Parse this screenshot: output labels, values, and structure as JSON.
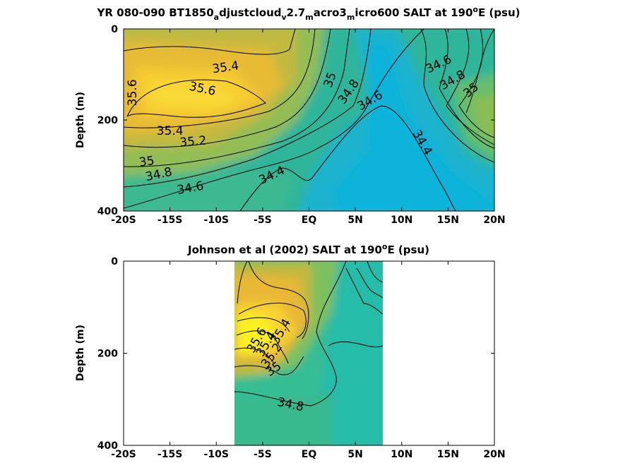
{
  "chart_data": [
    {
      "type": "heatmap",
      "title": "YR 080-090 BT1850_adjustcloud_v2.7_macro3_micro600 SALT at 190°E (psu)",
      "title_parts": [
        "YR 080-090 BT1850",
        "a",
        "djustcloud",
        "v",
        "2.7",
        "m",
        "acro3",
        "m",
        "icro600 SALT at 190",
        "o",
        "E (psu)"
      ],
      "ylabel": "Depth (m)",
      "xlabel": "",
      "xlim": [
        -20,
        20
      ],
      "ylim": [
        400,
        0
      ],
      "x_ticks": [
        -20,
        -15,
        -10,
        -5,
        0,
        5,
        10,
        15,
        20
      ],
      "x_tick_labels": [
        "-20S",
        "-15S",
        "-10S",
        "-5S",
        "EQ",
        "5N",
        "10N",
        "15N",
        "20N"
      ],
      "y_ticks": [
        0,
        200,
        400
      ],
      "y_tick_labels": [
        "0",
        "200",
        "400"
      ],
      "colormap": "parula",
      "clim": [
        34.3,
        35.8
      ],
      "contour_levels": [
        34.4,
        34.6,
        34.8,
        35,
        35.2,
        35.4,
        35.6
      ],
      "contour_labels": [
        {
          "text": "35.4",
          "lat": -9,
          "depth": 85,
          "angle": -8
        },
        {
          "text": "35.6",
          "lat": -11.5,
          "depth": 132,
          "angle": 12
        },
        {
          "text": "35.6",
          "lat": -19,
          "depth": 140,
          "angle": -90
        },
        {
          "text": "35.4",
          "lat": -15,
          "depth": 225,
          "angle": 0
        },
        {
          "text": "35.2",
          "lat": -12.5,
          "depth": 248,
          "angle": -5
        },
        {
          "text": "35",
          "lat": -17.5,
          "depth": 292,
          "angle": -8
        },
        {
          "text": "34.8",
          "lat": -16.2,
          "depth": 320,
          "angle": -12
        },
        {
          "text": "34.6",
          "lat": -12.8,
          "depth": 350,
          "angle": -10
        },
        {
          "text": "34.4",
          "lat": -4,
          "depth": 322,
          "angle": -25
        },
        {
          "text": "35",
          "lat": 2.3,
          "depth": 112,
          "angle": -70
        },
        {
          "text": "34.8",
          "lat": 4.3,
          "depth": 138,
          "angle": -55
        },
        {
          "text": "34.6",
          "lat": 6.6,
          "depth": 158,
          "angle": -30
        },
        {
          "text": "34.4",
          "lat": 12.2,
          "depth": 250,
          "angle": 60
        },
        {
          "text": "34.6",
          "lat": 14,
          "depth": 78,
          "angle": -25
        },
        {
          "text": "34.8",
          "lat": 15.5,
          "depth": 113,
          "angle": -30
        },
        {
          "text": "35",
          "lat": 17.5,
          "depth": 135,
          "angle": -40
        }
      ],
      "data_extent_lat": [
        -20,
        20
      ],
      "grid": false
    },
    {
      "type": "heatmap",
      "title": "Johnson et al (2002) SALT at 190°E (psu)",
      "title_parts": [
        "Johnson et al (2002) SALT at 190",
        "o",
        "E (psu)"
      ],
      "ylabel": "Depth (m)",
      "xlabel": "",
      "xlim": [
        -20,
        20
      ],
      "ylim": [
        400,
        0
      ],
      "x_ticks": [
        -20,
        -15,
        -10,
        -5,
        0,
        5,
        10,
        15,
        20
      ],
      "x_tick_labels": [
        "-20S",
        "-15S",
        "-10S",
        "-5S",
        "EQ",
        "5N",
        "10N",
        "15N",
        "20N"
      ],
      "y_ticks": [
        0,
        200,
        400
      ],
      "y_tick_labels": [
        "0",
        "200",
        "400"
      ],
      "colormap": "parula",
      "clim": [
        34.3,
        35.8
      ],
      "contour_levels": [
        34.8,
        35,
        35.2,
        35.4,
        35.6
      ],
      "contour_labels": [
        {
          "text": "34.8",
          "lat": -2,
          "depth": 312,
          "angle": 12
        },
        {
          "text": "35",
          "lat": -3.8,
          "depth": 235,
          "angle": -35
        },
        {
          "text": "35.2",
          "lat": -4.0,
          "depth": 205,
          "angle": -55
        },
        {
          "text": "35.4",
          "lat": -4.6,
          "depth": 180,
          "angle": -60
        },
        {
          "text": "35.6",
          "lat": -5.6,
          "depth": 172,
          "angle": -60
        },
        {
          "text": "35.4",
          "lat": -3.0,
          "depth": 153,
          "angle": -60
        }
      ],
      "data_extent_lat": [
        -8,
        8
      ],
      "grid": false
    }
  ]
}
